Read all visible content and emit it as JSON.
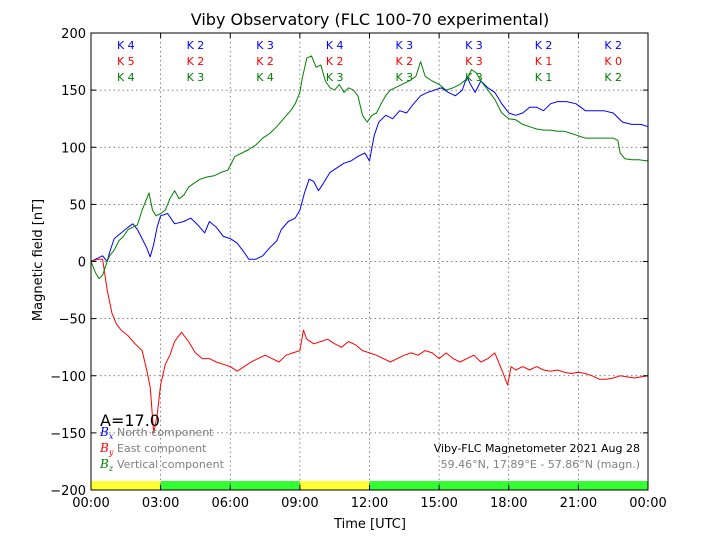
{
  "chart_data": {
    "type": "line",
    "title": "Viby Observatory (FLC 100-70 experimental)",
    "xlabel": "Time [UTC]",
    "ylabel": "Magnetic field [nT]",
    "xlim": [
      0,
      24
    ],
    "ylim": [
      -200,
      200
    ],
    "x_ticks": [
      "00:00",
      "03:00",
      "06:00",
      "09:00",
      "12:00",
      "15:00",
      "18:00",
      "21:00",
      "00:00"
    ],
    "y_ticks": [
      -200,
      -150,
      -100,
      -50,
      0,
      50,
      100,
      150,
      200
    ],
    "grid": true,
    "annotation_a_index": "A=17.0",
    "info_line1": "Viby-FLC Magnetometer 2021 Aug 28",
    "info_line2": "59.46°N, 17.89°E - 57.86°N (magn.)",
    "legend_position": "bottom-left",
    "legend": [
      {
        "symbol": "B",
        "sub": "x",
        "label": "North component",
        "color": "#0000ff"
      },
      {
        "symbol": "B",
        "sub": "y",
        "label": "East component",
        "color": "#ff0000"
      },
      {
        "symbol": "B",
        "sub": "z",
        "label": "Vertical component",
        "color": "#008000"
      }
    ],
    "k_indices": [
      {
        "period": "00-03",
        "x": "K 4",
        "y": "K 5",
        "z": "K 4"
      },
      {
        "period": "03-06",
        "x": "K 2",
        "y": "K 2",
        "z": "K 3"
      },
      {
        "period": "06-09",
        "x": "K 3",
        "y": "K 2",
        "z": "K 4"
      },
      {
        "period": "09-12",
        "x": "K 4",
        "y": "K 2",
        "z": "K 3"
      },
      {
        "period": "12-15",
        "x": "K 3",
        "y": "K 2",
        "z": "K 3"
      },
      {
        "period": "15-18",
        "x": "K 3",
        "y": "K 3",
        "z": "K 3"
      },
      {
        "period": "18-21",
        "x": "K 2",
        "y": "K 1",
        "z": "K 1"
      },
      {
        "period": "21-24",
        "x": "K 2",
        "y": "K 0",
        "z": "K 2"
      }
    ],
    "activity_bar": [
      {
        "start": 0,
        "end": 3,
        "color": "#ffff33"
      },
      {
        "start": 3,
        "end": 9,
        "color": "#33ff33"
      },
      {
        "start": 9,
        "end": 12,
        "color": "#ffff33"
      },
      {
        "start": 12,
        "end": 24,
        "color": "#33ff33"
      }
    ],
    "series": [
      {
        "name": "North component",
        "color": "#0000ff",
        "points": [
          [
            0,
            0
          ],
          [
            0.2,
            2
          ],
          [
            0.5,
            5
          ],
          [
            0.7,
            0
          ],
          [
            0.8,
            8
          ],
          [
            1,
            20
          ],
          [
            1.3,
            25
          ],
          [
            1.6,
            30
          ],
          [
            1.8,
            33
          ],
          [
            2,
            28
          ],
          [
            2.2,
            20
          ],
          [
            2.4,
            12
          ],
          [
            2.55,
            4
          ],
          [
            2.7,
            15
          ],
          [
            2.85,
            30
          ],
          [
            3,
            40
          ],
          [
            3.3,
            42
          ],
          [
            3.6,
            33
          ],
          [
            4,
            35
          ],
          [
            4.3,
            38
          ],
          [
            4.6,
            32
          ],
          [
            4.9,
            25
          ],
          [
            5.1,
            35
          ],
          [
            5.4,
            30
          ],
          [
            5.7,
            22
          ],
          [
            6,
            20
          ],
          [
            6.3,
            16
          ],
          [
            6.6,
            8
          ],
          [
            6.8,
            2
          ],
          [
            7.1,
            2
          ],
          [
            7.4,
            5
          ],
          [
            7.7,
            12
          ],
          [
            8,
            18
          ],
          [
            8.2,
            28
          ],
          [
            8.5,
            35
          ],
          [
            8.8,
            38
          ],
          [
            9,
            45
          ],
          [
            9.2,
            60
          ],
          [
            9.4,
            72
          ],
          [
            9.6,
            70
          ],
          [
            9.8,
            62
          ],
          [
            10,
            68
          ],
          [
            10.3,
            78
          ],
          [
            10.6,
            82
          ],
          [
            10.9,
            86
          ],
          [
            11.2,
            88
          ],
          [
            11.5,
            92
          ],
          [
            11.8,
            95
          ],
          [
            12,
            88
          ],
          [
            12.2,
            110
          ],
          [
            12.4,
            122
          ],
          [
            12.7,
            128
          ],
          [
            13,
            125
          ],
          [
            13.3,
            132
          ],
          [
            13.6,
            130
          ],
          [
            13.9,
            138
          ],
          [
            14.2,
            145
          ],
          [
            14.5,
            148
          ],
          [
            14.8,
            150
          ],
          [
            15.1,
            152
          ],
          [
            15.4,
            148
          ],
          [
            15.7,
            145
          ],
          [
            16,
            150
          ],
          [
            16.2,
            162
          ],
          [
            16.35,
            155
          ],
          [
            16.55,
            148
          ],
          [
            16.8,
            158
          ],
          [
            17.1,
            152
          ],
          [
            17.4,
            148
          ],
          [
            17.7,
            138
          ],
          [
            18,
            130
          ],
          [
            18.3,
            128
          ],
          [
            18.6,
            130
          ],
          [
            18.9,
            135
          ],
          [
            19.2,
            135
          ],
          [
            19.5,
            132
          ],
          [
            19.8,
            138
          ],
          [
            20.1,
            140
          ],
          [
            20.5,
            140
          ],
          [
            20.9,
            138
          ],
          [
            21.3,
            132
          ],
          [
            21.7,
            132
          ],
          [
            22.1,
            132
          ],
          [
            22.5,
            130
          ],
          [
            22.9,
            122
          ],
          [
            23.3,
            120
          ],
          [
            23.7,
            120
          ],
          [
            24,
            118
          ]
        ]
      },
      {
        "name": "East component",
        "color": "#ff0000",
        "points": [
          [
            0,
            0
          ],
          [
            0.3,
            2
          ],
          [
            0.5,
            2
          ],
          [
            0.7,
            -25
          ],
          [
            0.9,
            -45
          ],
          [
            1.1,
            -55
          ],
          [
            1.3,
            -60
          ],
          [
            1.6,
            -65
          ],
          [
            1.9,
            -72
          ],
          [
            2.2,
            -78
          ],
          [
            2.4,
            -95
          ],
          [
            2.55,
            -110
          ],
          [
            2.7,
            -150
          ],
          [
            2.85,
            -135
          ],
          [
            3,
            -108
          ],
          [
            3.2,
            -90
          ],
          [
            3.4,
            -82
          ],
          [
            3.6,
            -70
          ],
          [
            3.9,
            -62
          ],
          [
            4.2,
            -70
          ],
          [
            4.5,
            -80
          ],
          [
            4.8,
            -85
          ],
          [
            5.1,
            -85
          ],
          [
            5.4,
            -88
          ],
          [
            5.7,
            -90
          ],
          [
            6,
            -92
          ],
          [
            6.3,
            -96
          ],
          [
            6.6,
            -92
          ],
          [
            6.9,
            -88
          ],
          [
            7.2,
            -85
          ],
          [
            7.5,
            -82
          ],
          [
            7.8,
            -85
          ],
          [
            8.1,
            -88
          ],
          [
            8.4,
            -82
          ],
          [
            8.7,
            -80
          ],
          [
            9,
            -78
          ],
          [
            9.15,
            -60
          ],
          [
            9.3,
            -68
          ],
          [
            9.6,
            -72
          ],
          [
            9.9,
            -70
          ],
          [
            10.2,
            -68
          ],
          [
            10.5,
            -72
          ],
          [
            10.8,
            -75
          ],
          [
            11.1,
            -70
          ],
          [
            11.4,
            -73
          ],
          [
            11.7,
            -78
          ],
          [
            12,
            -80
          ],
          [
            12.3,
            -82
          ],
          [
            12.6,
            -85
          ],
          [
            12.9,
            -88
          ],
          [
            13.2,
            -85
          ],
          [
            13.5,
            -82
          ],
          [
            13.8,
            -80
          ],
          [
            14.1,
            -82
          ],
          [
            14.4,
            -78
          ],
          [
            14.7,
            -80
          ],
          [
            15,
            -85
          ],
          [
            15.3,
            -80
          ],
          [
            15.6,
            -85
          ],
          [
            15.9,
            -88
          ],
          [
            16.2,
            -85
          ],
          [
            16.5,
            -82
          ],
          [
            16.8,
            -88
          ],
          [
            17.1,
            -85
          ],
          [
            17.4,
            -80
          ],
          [
            17.6,
            -90
          ],
          [
            17.8,
            -100
          ],
          [
            17.95,
            -108
          ],
          [
            18.1,
            -92
          ],
          [
            18.3,
            -95
          ],
          [
            18.6,
            -92
          ],
          [
            18.9,
            -95
          ],
          [
            19.2,
            -92
          ],
          [
            19.5,
            -95
          ],
          [
            19.8,
            -96
          ],
          [
            20.1,
            -95
          ],
          [
            20.4,
            -97
          ],
          [
            20.7,
            -98
          ],
          [
            21,
            -97
          ],
          [
            21.3,
            -98
          ],
          [
            21.6,
            -100
          ],
          [
            21.9,
            -103
          ],
          [
            22.2,
            -103
          ],
          [
            22.5,
            -102
          ],
          [
            22.8,
            -100
          ],
          [
            23.1,
            -101
          ],
          [
            23.4,
            -102
          ],
          [
            23.7,
            -101
          ],
          [
            24,
            -100
          ]
        ]
      },
      {
        "name": "Vertical component",
        "color": "#008000",
        "points": [
          [
            0,
            0
          ],
          [
            0.2,
            -10
          ],
          [
            0.35,
            -15
          ],
          [
            0.5,
            -12
          ],
          [
            0.7,
            0
          ],
          [
            0.8,
            5
          ],
          [
            1,
            10
          ],
          [
            1.2,
            18
          ],
          [
            1.4,
            22
          ],
          [
            1.6,
            28
          ],
          [
            1.8,
            30
          ],
          [
            2,
            32
          ],
          [
            2.2,
            45
          ],
          [
            2.4,
            55
          ],
          [
            2.5,
            60
          ],
          [
            2.65,
            45
          ],
          [
            2.8,
            40
          ],
          [
            3,
            42
          ],
          [
            3.2,
            45
          ],
          [
            3.4,
            55
          ],
          [
            3.6,
            62
          ],
          [
            3.8,
            55
          ],
          [
            4,
            58
          ],
          [
            4.2,
            65
          ],
          [
            4.4,
            68
          ],
          [
            4.7,
            72
          ],
          [
            5,
            74
          ],
          [
            5.3,
            75
          ],
          [
            5.6,
            78
          ],
          [
            5.9,
            80
          ],
          [
            6.2,
            92
          ],
          [
            6.5,
            95
          ],
          [
            6.8,
            98
          ],
          [
            7.1,
            102
          ],
          [
            7.4,
            108
          ],
          [
            7.7,
            112
          ],
          [
            8,
            118
          ],
          [
            8.3,
            125
          ],
          [
            8.6,
            132
          ],
          [
            8.8,
            138
          ],
          [
            9,
            148
          ],
          [
            9.1,
            160
          ],
          [
            9.3,
            178
          ],
          [
            9.5,
            180
          ],
          [
            9.7,
            170
          ],
          [
            9.9,
            172
          ],
          [
            10.1,
            158
          ],
          [
            10.3,
            152
          ],
          [
            10.5,
            150
          ],
          [
            10.7,
            155
          ],
          [
            10.9,
            148
          ],
          [
            11.1,
            152
          ],
          [
            11.3,
            150
          ],
          [
            11.5,
            145
          ],
          [
            11.7,
            128
          ],
          [
            11.9,
            122
          ],
          [
            12.1,
            128
          ],
          [
            12.3,
            130
          ],
          [
            12.5,
            138
          ],
          [
            12.7,
            145
          ],
          [
            12.9,
            150
          ],
          [
            13.1,
            152
          ],
          [
            13.4,
            155
          ],
          [
            13.7,
            158
          ],
          [
            14,
            162
          ],
          [
            14.2,
            175
          ],
          [
            14.4,
            162
          ],
          [
            14.7,
            158
          ],
          [
            15,
            155
          ],
          [
            15.3,
            150
          ],
          [
            15.6,
            152
          ],
          [
            15.9,
            155
          ],
          [
            16.2,
            160
          ],
          [
            16.4,
            168
          ],
          [
            16.6,
            165
          ],
          [
            16.8,
            158
          ],
          [
            17.1,
            150
          ],
          [
            17.4,
            142
          ],
          [
            17.7,
            130
          ],
          [
            18,
            125
          ],
          [
            18.3,
            124
          ],
          [
            18.6,
            120
          ],
          [
            18.9,
            118
          ],
          [
            19.2,
            116
          ],
          [
            19.5,
            115
          ],
          [
            19.8,
            115
          ],
          [
            20.1,
            114
          ],
          [
            20.4,
            114
          ],
          [
            20.7,
            112
          ],
          [
            21,
            110
          ],
          [
            21.3,
            108
          ],
          [
            21.6,
            108
          ],
          [
            21.9,
            108
          ],
          [
            22.2,
            108
          ],
          [
            22.5,
            108
          ],
          [
            22.7,
            106
          ],
          [
            22.8,
            95
          ],
          [
            23,
            90
          ],
          [
            23.3,
            89
          ],
          [
            23.6,
            89
          ],
          [
            24,
            88
          ]
        ]
      }
    ]
  }
}
